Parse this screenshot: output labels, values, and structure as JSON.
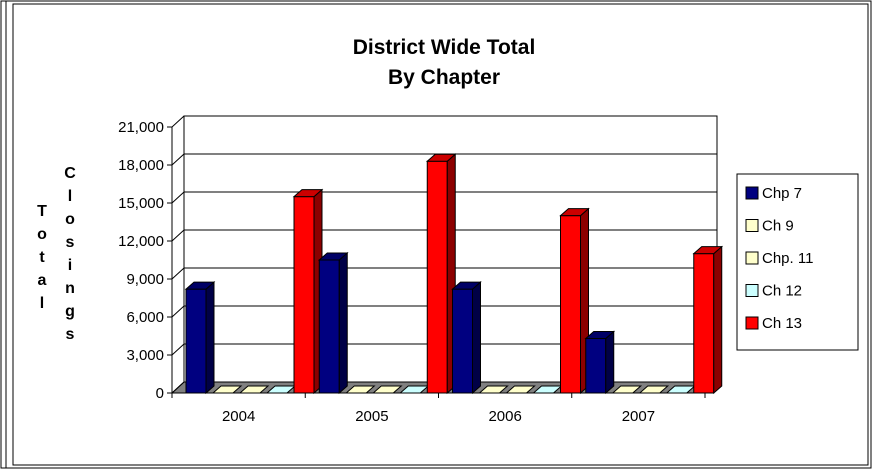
{
  "chart_data": {
    "type": "bar",
    "title_lines": [
      "District Wide Total",
      "By Chapter"
    ],
    "ylabel_groups": [
      [
        "T",
        "o",
        "t",
        "a",
        "l"
      ],
      [
        "C",
        "l",
        "o",
        "s",
        "i",
        "n",
        "g",
        "s"
      ]
    ],
    "categories": [
      "2004",
      "2005",
      "2006",
      "2007"
    ],
    "ylim": [
      0,
      21000
    ],
    "yticks": [
      0,
      3000,
      6000,
      9000,
      12000,
      15000,
      18000,
      21000
    ],
    "ytick_labels": [
      "0",
      "3,000",
      "6,000",
      "9,000",
      "12,000",
      "15,000",
      "18,000",
      "21,000"
    ],
    "grid": true,
    "legend_position": "right",
    "series": [
      {
        "name": "Chp 7",
        "color": "#000080",
        "values": [
          8200,
          10500,
          8200,
          4300
        ]
      },
      {
        "name": "Ch 9",
        "color": "#FFFFCC",
        "values": [
          0,
          0,
          0,
          0
        ]
      },
      {
        "name": "Chp. 11",
        "color": "#FFFFCC",
        "values": [
          0,
          0,
          0,
          0
        ]
      },
      {
        "name": "Ch 12",
        "color": "#CCFFFF",
        "values": [
          0,
          0,
          0,
          0
        ]
      },
      {
        "name": "Ch 13",
        "color": "#FF0000",
        "values": [
          15500,
          18300,
          14000,
          11000
        ]
      }
    ]
  }
}
